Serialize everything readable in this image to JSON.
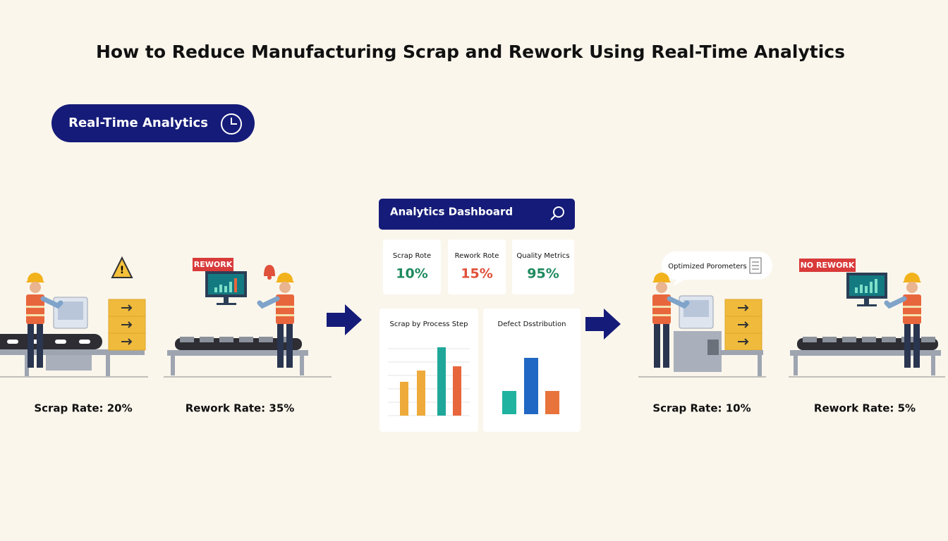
{
  "title": "How to Reduce Manufacturing Scrap and Rework Using Real-Time Analytics",
  "badge": "Real-Time Analytics",
  "before": {
    "scrap": {
      "label": "Scrap Rate: 20%"
    },
    "rework": {
      "tag": "REWORK",
      "label": "Rework Rate: 35%"
    }
  },
  "dashboard": {
    "title": "Analytics Dashboard",
    "metrics": [
      {
        "label": "Scrap Rote",
        "value": "10%",
        "color": "#1e8a5e"
      },
      {
        "label": "Rework Rote",
        "value": "15%",
        "color": "#e0503a"
      },
      {
        "label": "Quality Metrics",
        "value": "95%",
        "color": "#1e8a5e"
      }
    ],
    "charts": [
      {
        "title": "Scrap by Process Step",
        "values": [
          48,
          64,
          97,
          70
        ],
        "colors": [
          "#eeaa3a",
          "#eeaa3a",
          "#1fa89a",
          "#e8663c"
        ]
      },
      {
        "title": "Defect Dsstribution",
        "values": [
          33,
          80,
          33
        ],
        "colors": [
          "#1fb3a0",
          "#2168c4",
          "#e8743c"
        ]
      }
    ]
  },
  "after": {
    "scrap": {
      "bubble": "Optimized Porometers",
      "label": "Scrap Rate: 10%"
    },
    "rework": {
      "tag": "NO REWORK",
      "label": "Rework Rate: 5%"
    }
  }
}
